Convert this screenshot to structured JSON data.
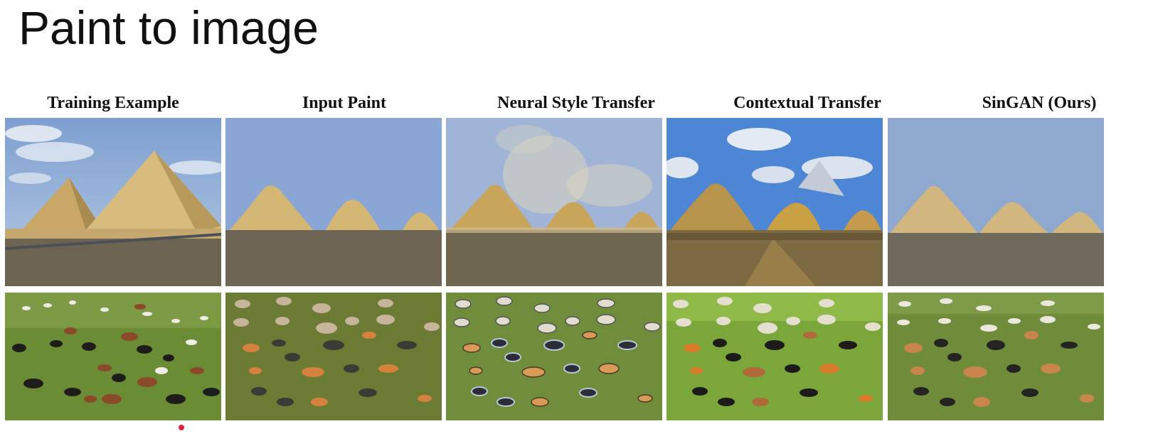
{
  "slide": {
    "title": "Paint to image"
  },
  "columns": [
    {
      "key": "training",
      "label": "Training Example"
    },
    {
      "key": "paint",
      "label": "Input Paint"
    },
    {
      "key": "nst",
      "label": "Neural Style Transfer"
    },
    {
      "key": "contextual",
      "label": "Contextual Transfer"
    },
    {
      "key": "singan",
      "label": "SinGAN (Ours)"
    }
  ],
  "rows": [
    "pyramids",
    "cows"
  ],
  "colors": {
    "sky": "#8aa6d4",
    "sand": "#d4b775",
    "ground": "#6e6554",
    "grass": "#6f8a3a",
    "paint_grass": "#6c7b34",
    "laser": "#e0263a"
  }
}
